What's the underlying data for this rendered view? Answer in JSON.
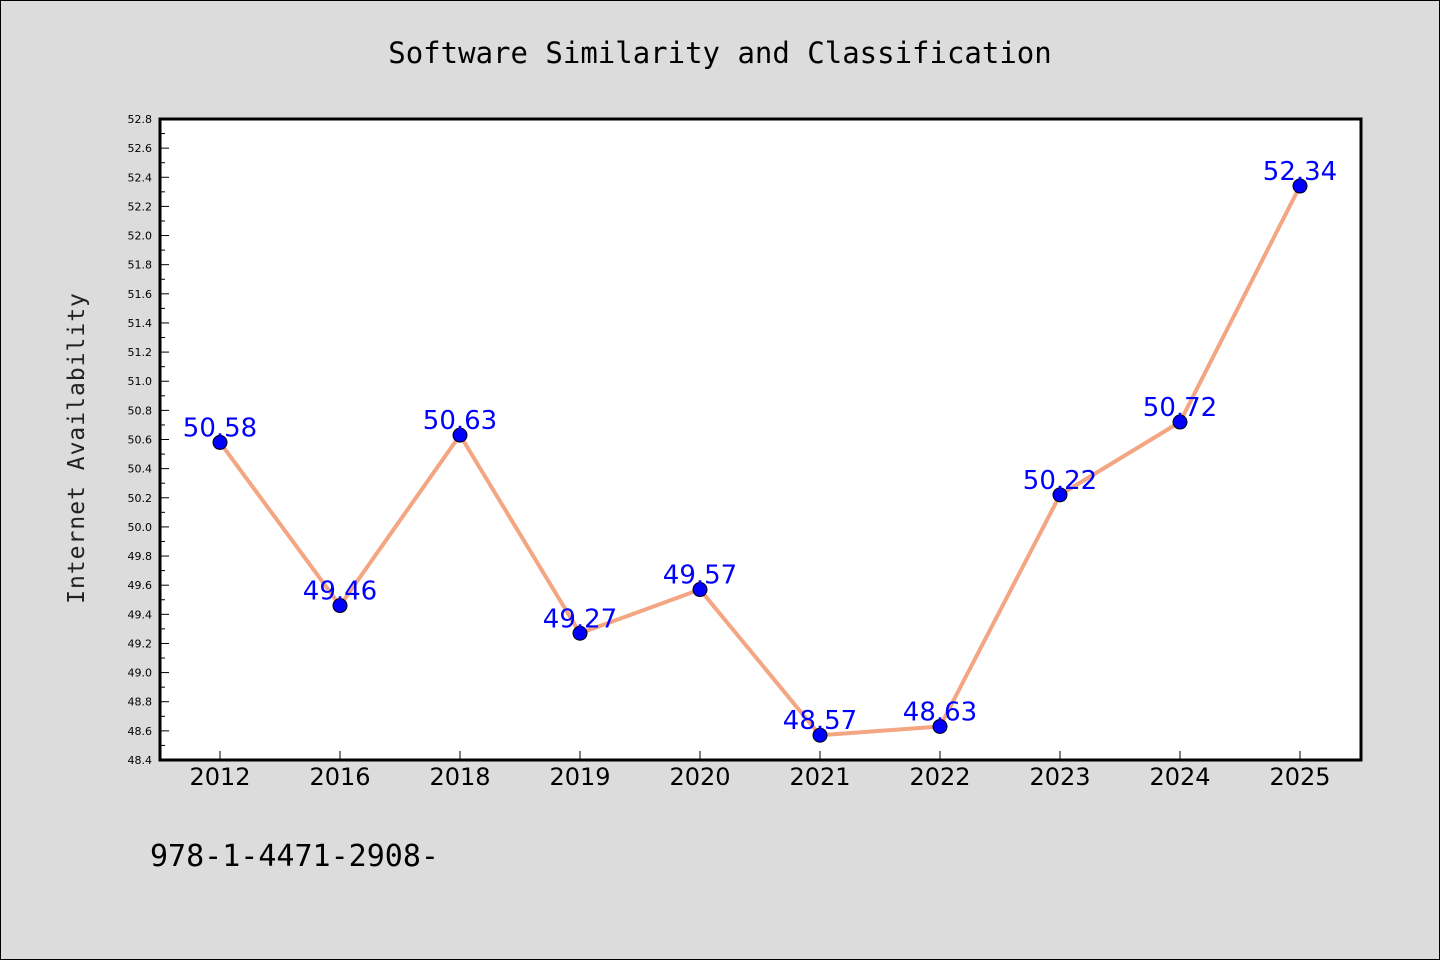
{
  "chart_data": {
    "type": "line",
    "title": "Software Similarity and Classification",
    "xlabel": "",
    "ylabel": "Internet Availability",
    "categories": [
      "2012",
      "2016",
      "2018",
      "2019",
      "2020",
      "2021",
      "2022",
      "2023",
      "2024",
      "2025"
    ],
    "series": [
      {
        "values": [
          50.58,
          49.46,
          50.63,
          49.27,
          49.57,
          48.57,
          48.63,
          50.22,
          50.72,
          52.34
        ],
        "data_labels": [
          "50.58",
          "49.46",
          "50.63",
          "49.27",
          "49.57",
          "48.57",
          "48.63",
          "50.22",
          "50.72",
          "52.34"
        ]
      }
    ],
    "ylim": [
      48.4,
      52.8
    ],
    "yticks": [
      "48.4",
      "48.6",
      "48.8",
      "49.0",
      "49.2",
      "49.4",
      "49.6",
      "49.8",
      "50.0",
      "50.2",
      "50.4",
      "50.6",
      "50.8",
      "51.0",
      "51.2",
      "51.4",
      "51.6",
      "51.8",
      "52.0",
      "52.2",
      "52.4",
      "52.6",
      "52.8"
    ],
    "grid": false,
    "line_color": "#f4a582",
    "marker_color": "#0000ff",
    "label_color": "#0000ff"
  },
  "footer": {
    "text": "978-1-4471-2908-"
  }
}
